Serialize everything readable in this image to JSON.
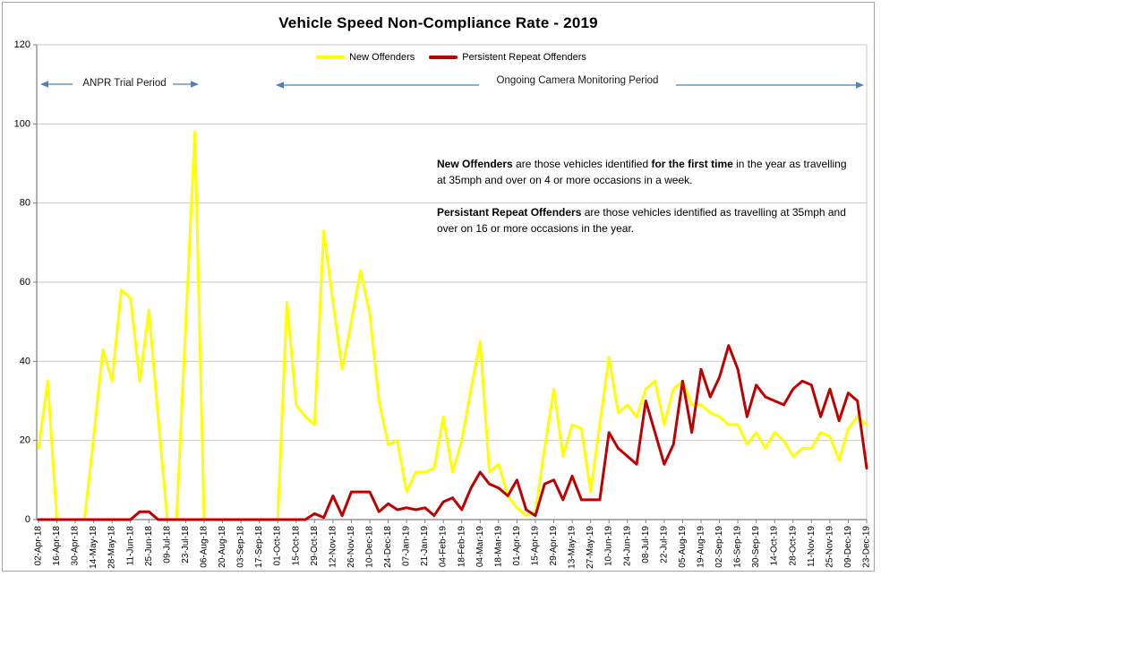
{
  "chart": {
    "title": "Vehicle Speed Non-Compliance Rate - 2019",
    "legend": [
      {
        "label": "New Offenders",
        "color": "#ffff00"
      },
      {
        "label": "Persistent Repeat Offenders",
        "color": "#c00000"
      }
    ],
    "period_annotations": [
      {
        "label": "ANPR Trial Period"
      },
      {
        "label": "Ongoing Camera Monitoring Period"
      }
    ],
    "notes": [
      {
        "parts": [
          {
            "text": "New Offenders",
            "bold": true
          },
          {
            "text": " are those vehicles identified ",
            "bold": false
          },
          {
            "text": "for the first time",
            "bold": true
          },
          {
            "text": " in the year as travelling at 35mph and over on 4 or more occasions in a week.",
            "bold": false
          }
        ]
      },
      {
        "parts": [
          {
            "text": "Persistant Repeat Offenders",
            "bold": true
          },
          {
            "text": " are those vehicles identified as travelling at 35mph and over on 16 or more occasions in the year.",
            "bold": false
          }
        ]
      }
    ]
  },
  "chart_data": {
    "type": "line",
    "title": "Vehicle Speed Non-Compliance Rate - 2019",
    "xlabel": "",
    "ylabel": "",
    "ylim": [
      0,
      120
    ],
    "y_ticks": [
      0,
      20,
      40,
      60,
      80,
      100,
      120
    ],
    "grid": true,
    "legend_position": "top-center",
    "annotation_arrow_color": "#4f81bd",
    "axis_color": "#7f7f7f",
    "grid_color": "#c9c9c9",
    "points_per_tick_label": 2,
    "x_tick_labels": [
      "02-Apr-18",
      "16-Apr-18",
      "30-Apr-18",
      "14-May-18",
      "28-May-18",
      "11-Jun-18",
      "25-Jun-18",
      "09-Jul-18",
      "23-Jul-18",
      "06-Aug-18",
      "20-Aug-18",
      "03-Sep-18",
      "17-Sep-18",
      "01-Oct-18",
      "15-Oct-18",
      "29-Oct-18",
      "12-Nov-18",
      "26-Nov-18",
      "10-Dec-18",
      "24-Dec-18",
      "07-Jan-19",
      "21-Jan-19",
      "04-Feb-19",
      "18-Feb-19",
      "04-Mar-19",
      "18-Mar-19",
      "01-Apr-19",
      "15-Apr-19",
      "29-Apr-19",
      "13-May-19",
      "27-May-19",
      "10-Jun-19",
      "24-Jun-19",
      "08-Jul-19",
      "22-Jul-19",
      "05-Aug-19",
      "19-Aug-19",
      "02-Sep-19",
      "16-Sep-19",
      "30-Sep-19",
      "14-Oct-19",
      "28-Oct-19",
      "11-Nov-19",
      "25-Nov-19",
      "09-Dec-19",
      "23-Dec-19"
    ],
    "series": [
      {
        "name": "New Offenders",
        "color": "#ffff00",
        "values": [
          18,
          35,
          0,
          0,
          0,
          0,
          21,
          43,
          35,
          58,
          56,
          35,
          53,
          26,
          0,
          0,
          49,
          98,
          0,
          0,
          0,
          0,
          0,
          0,
          0,
          0,
          0,
          55,
          29,
          26,
          24,
          73,
          55,
          38,
          50,
          63,
          52,
          30,
          19,
          20,
          7,
          12,
          12,
          13,
          26,
          12,
          20,
          33,
          45,
          12,
          14,
          6,
          3,
          1,
          2,
          18,
          33,
          16,
          24,
          23,
          7,
          24,
          41,
          27,
          29,
          26,
          33,
          35,
          24,
          33,
          35,
          29,
          29,
          27,
          26,
          24,
          24,
          19,
          22,
          18,
          22,
          20,
          16,
          18,
          18,
          22,
          21,
          15,
          23,
          26,
          24
        ]
      },
      {
        "name": "Persistent Repeat Offenders",
        "color": "#c00000",
        "values": [
          0,
          0,
          0,
          0,
          0,
          0,
          0,
          0,
          0,
          0,
          0,
          2,
          2,
          0,
          0,
          0,
          0,
          0,
          0,
          0,
          0,
          0,
          0,
          0,
          0,
          0,
          0,
          0,
          0,
          0,
          1.5,
          0.5,
          6,
          1,
          7,
          7,
          7,
          2,
          4,
          2.5,
          3,
          2.5,
          3,
          1,
          4.5,
          5.5,
          2.5,
          8,
          12,
          9,
          8,
          6,
          10,
          2.5,
          1,
          9,
          10,
          5,
          11,
          5,
          5,
          5,
          22,
          18,
          16,
          14,
          30,
          22,
          14,
          19,
          35,
          22,
          38,
          31,
          36,
          44,
          38,
          26,
          34,
          31,
          30,
          29,
          33,
          35,
          34,
          26,
          33,
          25,
          32,
          30,
          13
        ]
      }
    ]
  }
}
